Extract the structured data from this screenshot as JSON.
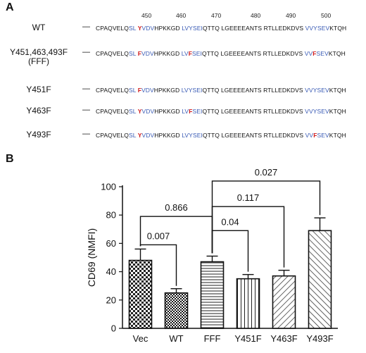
{
  "panel_a": {
    "label": "A",
    "ruler": [
      "450",
      "460",
      "470",
      "480",
      "490",
      "500"
    ],
    "dash": "—",
    "rows": [
      {
        "label": "WT",
        "label2": "",
        "segments": [
          {
            "t": "CPAQVELQ",
            "c": "n"
          },
          {
            "t": "SL ",
            "c": "b"
          },
          {
            "t": "Y",
            "c": "r"
          },
          {
            "t": "VDV",
            "c": "b"
          },
          {
            "t": "HPKKGD ",
            "c": "n"
          },
          {
            "t": "LVYSEI",
            "c": "b"
          },
          {
            "t": "QTTQ LGEEEEANTS RTLLEDKDVS ",
            "c": "n"
          },
          {
            "t": "VVYSEV",
            "c": "b"
          },
          {
            "t": "KTQH",
            "c": "n"
          }
        ]
      },
      {
        "label": "Y451,463,493F",
        "label2": "(FFF)",
        "segments": [
          {
            "t": "CPAQVELQ",
            "c": "n"
          },
          {
            "t": "SL ",
            "c": "b"
          },
          {
            "t": "F",
            "c": "r"
          },
          {
            "t": "VDV",
            "c": "b"
          },
          {
            "t": "HPKKGD ",
            "c": "n"
          },
          {
            "t": "LV",
            "c": "b"
          },
          {
            "t": "F",
            "c": "r"
          },
          {
            "t": "SEI",
            "c": "b"
          },
          {
            "t": "QTTQ LGEEEEANTS RTLLEDKDVS ",
            "c": "n"
          },
          {
            "t": "VV",
            "c": "b"
          },
          {
            "t": "F",
            "c": "r"
          },
          {
            "t": "SEV",
            "c": "b"
          },
          {
            "t": "KTQH",
            "c": "n"
          }
        ]
      },
      {
        "label": "Y451F",
        "label2": "",
        "segments": [
          {
            "t": "CPAQVELQ",
            "c": "n"
          },
          {
            "t": "SL ",
            "c": "b"
          },
          {
            "t": "F",
            "c": "r"
          },
          {
            "t": "VDV",
            "c": "b"
          },
          {
            "t": "HPKKGD ",
            "c": "n"
          },
          {
            "t": "LVYSEI",
            "c": "b"
          },
          {
            "t": "QTTQ LGEEEEANTS RTLLEDKDVS ",
            "c": "n"
          },
          {
            "t": "VVYSEV",
            "c": "b"
          },
          {
            "t": "KTQH",
            "c": "n"
          }
        ]
      },
      {
        "label": "Y463F",
        "label2": "",
        "segments": [
          {
            "t": "CPAQVELQ",
            "c": "n"
          },
          {
            "t": "SL ",
            "c": "b"
          },
          {
            "t": "Y",
            "c": "r"
          },
          {
            "t": "VDV",
            "c": "b"
          },
          {
            "t": "HPKKGD ",
            "c": "n"
          },
          {
            "t": "LV",
            "c": "b"
          },
          {
            "t": "F",
            "c": "r"
          },
          {
            "t": "SEI",
            "c": "b"
          },
          {
            "t": "QTTQ LGEEEEANTS RTLLEDKDVS ",
            "c": "n"
          },
          {
            "t": "VVYSEV",
            "c": "b"
          },
          {
            "t": "KTQH",
            "c": "n"
          }
        ]
      },
      {
        "label": "Y493F",
        "label2": "",
        "segments": [
          {
            "t": "CPAQVELQ",
            "c": "n"
          },
          {
            "t": "SL ",
            "c": "b"
          },
          {
            "t": "Y",
            "c": "r"
          },
          {
            "t": "VDV",
            "c": "b"
          },
          {
            "t": "HPKKGD ",
            "c": "n"
          },
          {
            "t": "LVYSEI",
            "c": "b"
          },
          {
            "t": "QTTQ LGEEEEANTS RTLLEDKDVS ",
            "c": "n"
          },
          {
            "t": "VV",
            "c": "b"
          },
          {
            "t": "F",
            "c": "r"
          },
          {
            "t": "SEV",
            "c": "b"
          },
          {
            "t": "KTQH",
            "c": "n"
          }
        ]
      }
    ]
  },
  "panel_b": {
    "label": "B"
  },
  "colors": {
    "blue": "#3a5bb5",
    "red": "#d01c1c",
    "axis": "#111111"
  },
  "chart_data": {
    "type": "bar",
    "categories": [
      "Vec",
      "WT",
      "FFF",
      "Y451F",
      "Y463F",
      "Y493F"
    ],
    "values": [
      48,
      25,
      47,
      35,
      37,
      69
    ],
    "errors": [
      8,
      3,
      4,
      3,
      4,
      9
    ],
    "patterns": [
      "checker",
      "checker-fine",
      "horizontal",
      "vertical",
      "diagonal-right",
      "diagonal-left"
    ],
    "ylabel": "CD69 (NMFI)",
    "ylim": [
      0,
      100
    ],
    "yticks": [
      0,
      20,
      40,
      60,
      80,
      100
    ],
    "annotations": [
      {
        "from": "Vec",
        "to": "WT",
        "label": "0.007"
      },
      {
        "from": "Vec",
        "to": "FFF",
        "label": "0.866"
      },
      {
        "from": "FFF",
        "to": "Y451F",
        "label": "0.04"
      },
      {
        "from": "FFF",
        "to": "Y463F",
        "label": "0.117"
      },
      {
        "from": "FFF",
        "to": "Y493F",
        "label": "0.027"
      }
    ]
  }
}
